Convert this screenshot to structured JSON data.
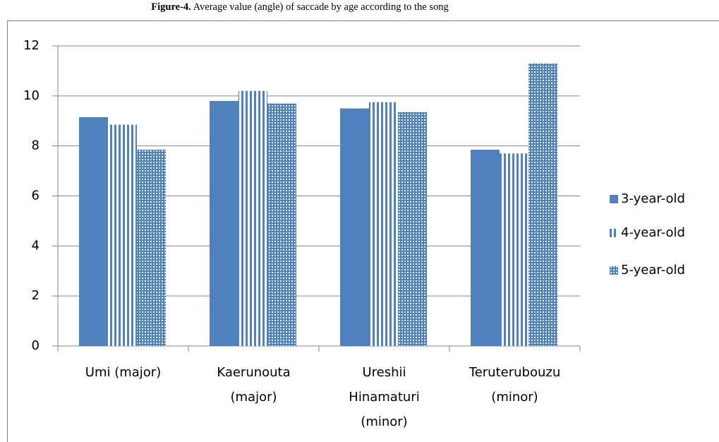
{
  "chart_data": {
    "type": "bar",
    "title_label": "Figure-4.",
    "title": "Average value (angle) of saccade by age according to the song",
    "categories": [
      "Umi (major)",
      "Kaerunouta (major)",
      "Ureshii Hinamaturi (minor)",
      "Teruterubouzu (minor)"
    ],
    "series": [
      {
        "name": "3-year-old",
        "color": "#4f81bd",
        "pattern": "solid",
        "values": [
          9.15,
          9.8,
          9.5,
          7.85
        ]
      },
      {
        "name": "4-year-old",
        "color": "#4f81bd",
        "pattern": "vertical-stripes",
        "values": [
          8.85,
          10.2,
          9.75,
          7.7
        ]
      },
      {
        "name": "5-year-old",
        "color": "#4f81bd",
        "pattern": "checker",
        "values": [
          7.85,
          9.7,
          9.35,
          11.3
        ]
      }
    ],
    "ylim": [
      0,
      12
    ],
    "yticks": [
      0,
      2,
      4,
      6,
      8,
      10,
      12
    ],
    "grid": true,
    "legend": "right"
  }
}
